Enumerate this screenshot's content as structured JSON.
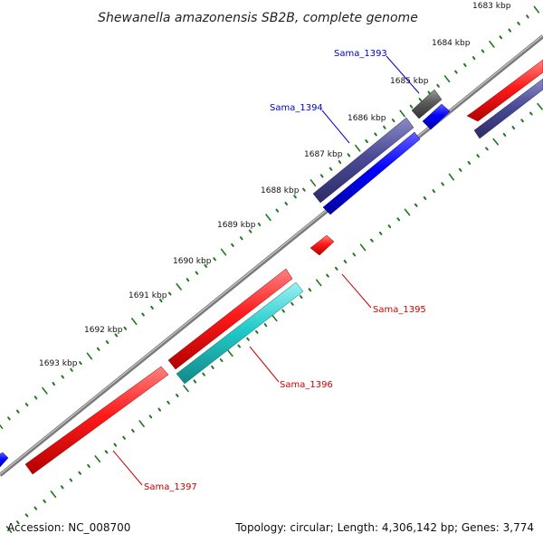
{
  "title": "Shewanella amazonensis SB2B, complete genome",
  "footer": {
    "accession": "Accession: NC_008700",
    "summary": "Topology: circular; Length: 4,306,142 bp; Genes: 3,774"
  },
  "colors": {
    "backbone": "#7f7f7f",
    "tick": "#1f7a1f",
    "gene_red": "#ff0000",
    "gene_blue": "#0000ff",
    "gene_slate": "#4b4b99",
    "gene_gray": "#5a5a5a",
    "gene_cyan": "#22cccc",
    "label_blue": "#0000cc",
    "label_red": "#cc0000"
  },
  "ticks": [
    {
      "label": "1683 kbp"
    },
    {
      "label": "1684 kbp"
    },
    {
      "label": "1685 kbp"
    },
    {
      "label": "1686 kbp"
    },
    {
      "label": "1687 kbp"
    },
    {
      "label": "1688 kbp"
    },
    {
      "label": "1689 kbp"
    },
    {
      "label": "1690 kbp"
    },
    {
      "label": "1691 kbp"
    },
    {
      "label": "1692 kbp"
    },
    {
      "label": "1693 kbp"
    }
  ],
  "genes": [
    {
      "label": "Sama_1393",
      "color": "gene_gray",
      "label_color": "label_blue"
    },
    {
      "label": "Sama_1394",
      "color": "gene_slate",
      "label_color": "label_blue"
    },
    {
      "label": "Sama_1395",
      "color": "gene_red",
      "label_color": "label_red"
    },
    {
      "label": "Sama_1396",
      "color": "gene_cyan",
      "label_color": "label_red"
    },
    {
      "label": "Sama_1397",
      "color": "gene_red",
      "label_color": "label_red"
    }
  ]
}
